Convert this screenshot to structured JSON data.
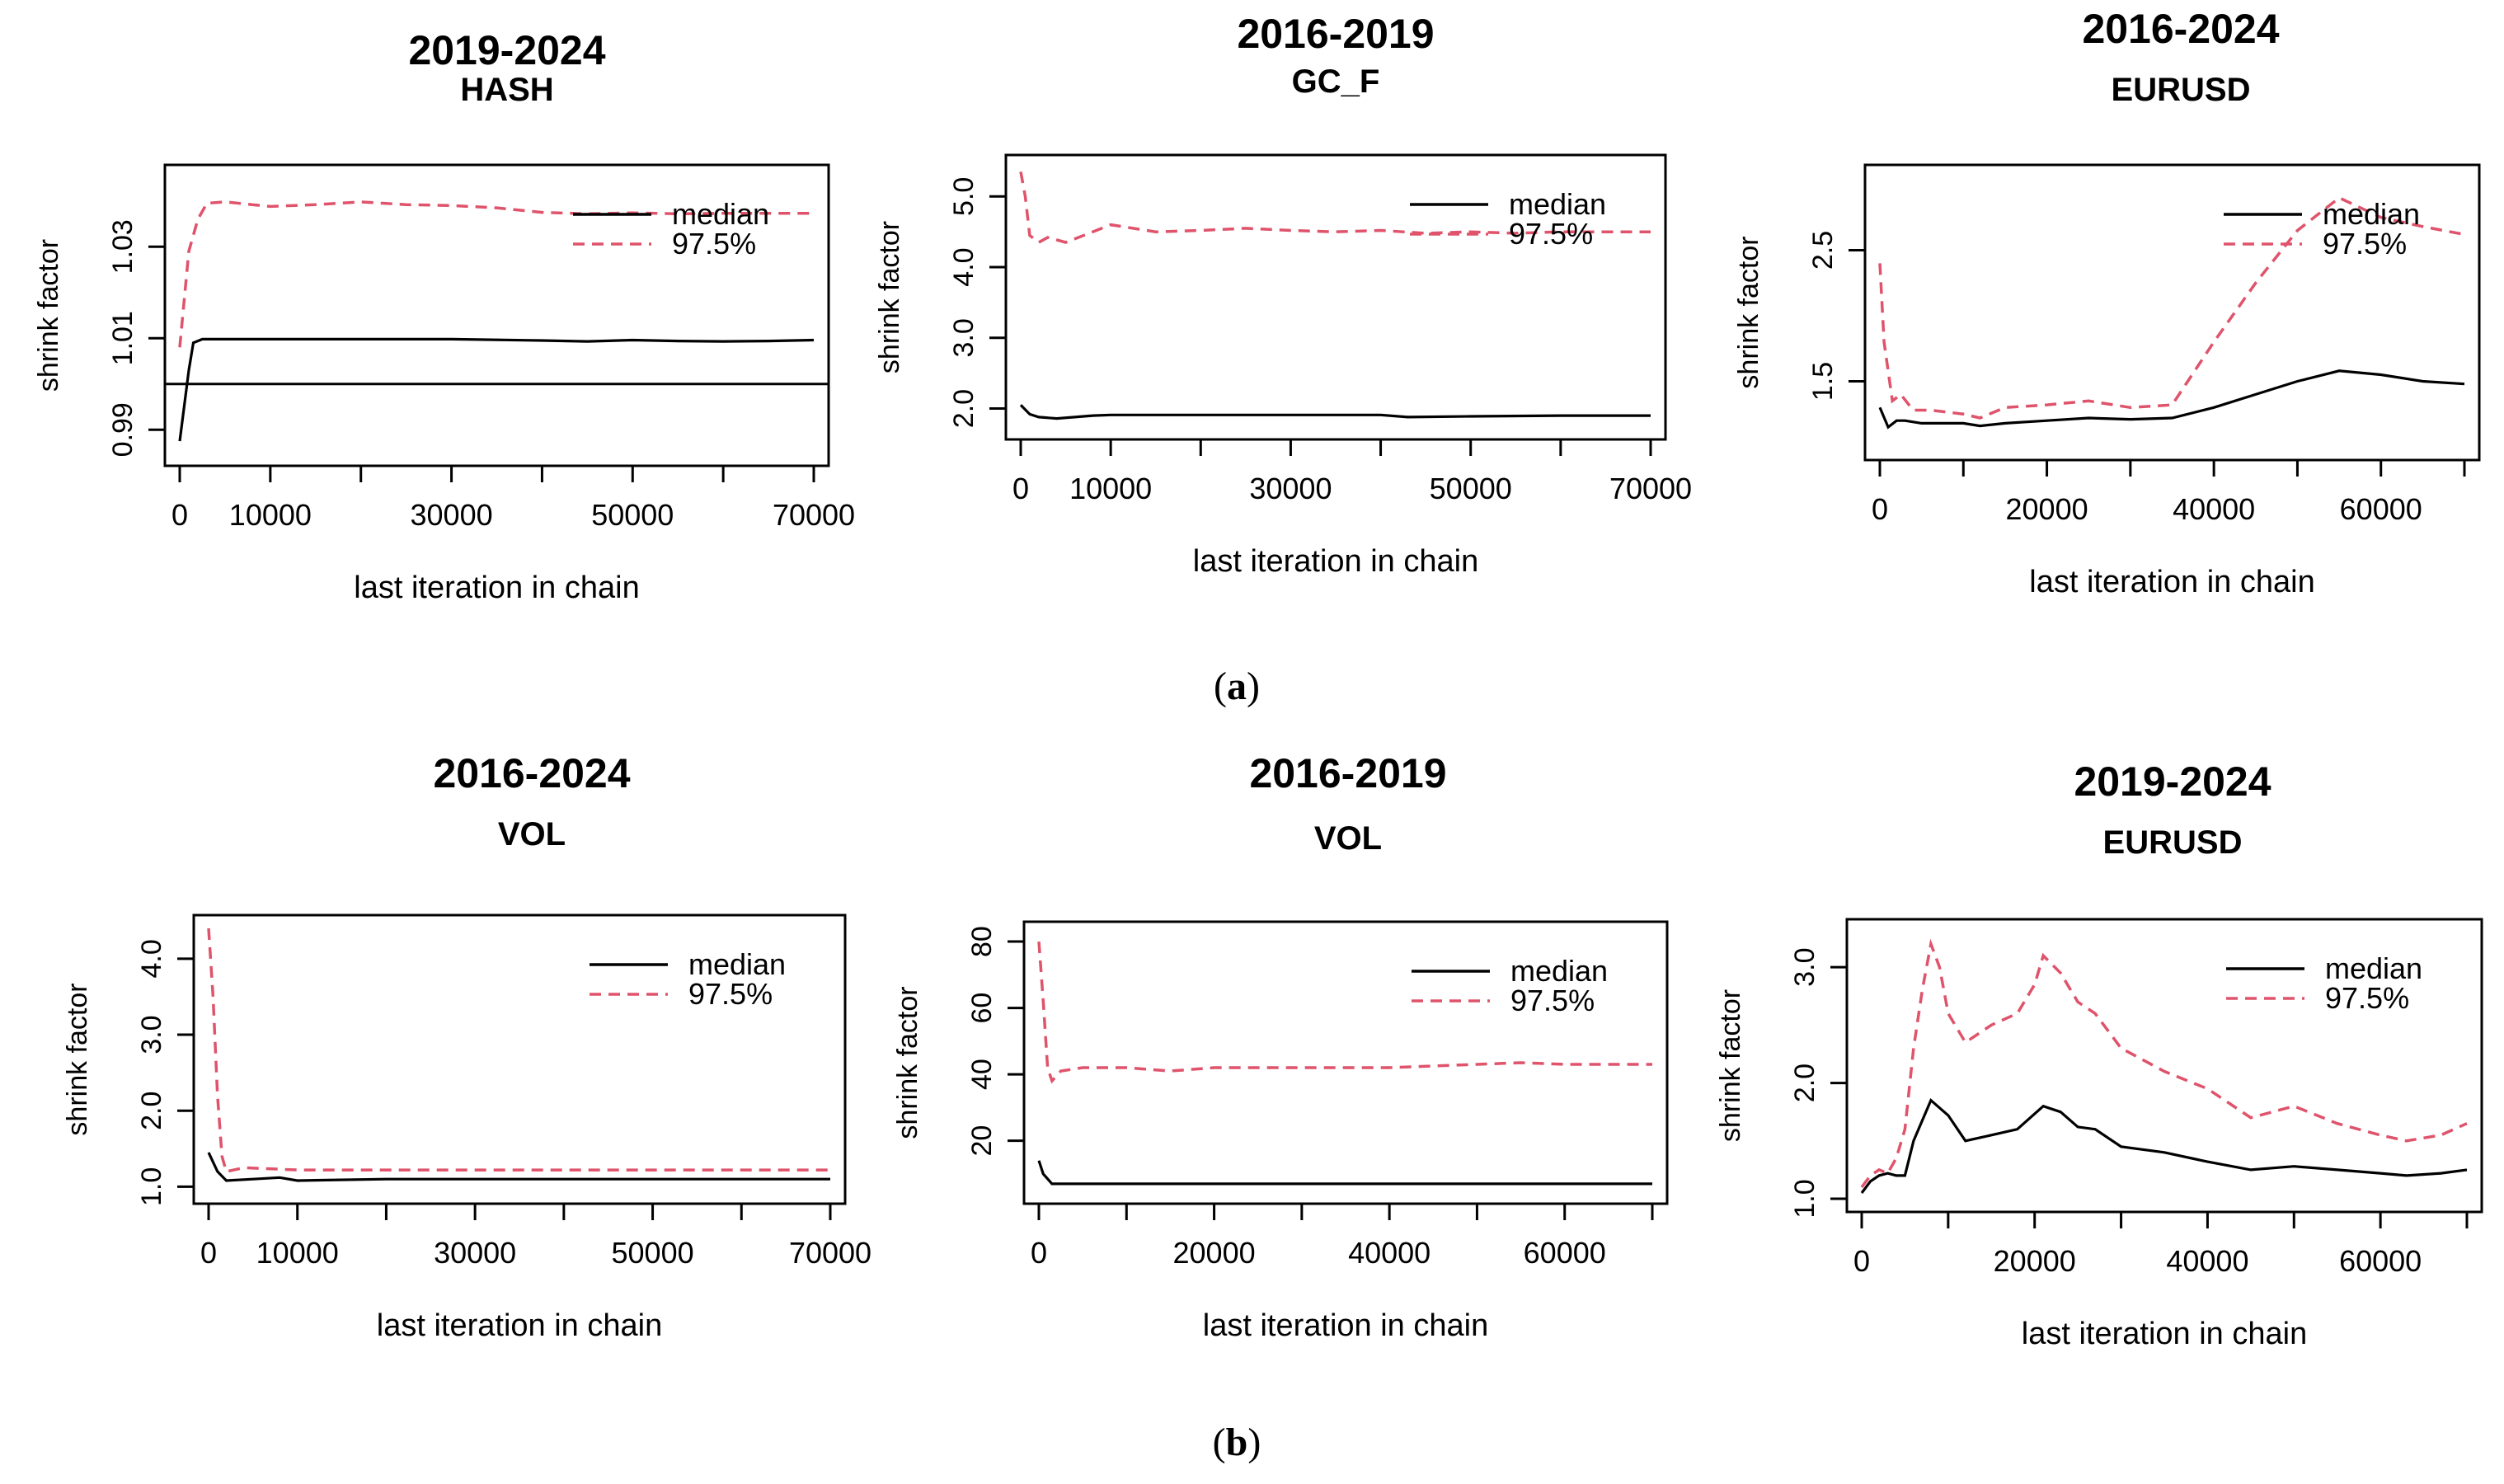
{
  "figure": {
    "panel_labels": {
      "a": "a",
      "b": "b"
    },
    "colors": {
      "median": "#000000",
      "q975": "#df536b",
      "axis": "#000000",
      "text": "#000000"
    }
  },
  "chart_data": [
    {
      "type": "line",
      "title": "2019-2024",
      "subtitle": "HASH",
      "xlabel": "last iteration in chain",
      "ylabel": "shrink factor",
      "xlim": [
        0,
        70000
      ],
      "ylim": [
        0.985,
        1.045
      ],
      "xticks": [
        0,
        10000,
        30000,
        50000,
        70000
      ],
      "xtick_labels": [
        "0",
        "10000",
        "30000",
        "50000",
        "70000"
      ],
      "yticks": [
        0.99,
        1.01,
        1.03
      ],
      "ytick_labels": [
        "0.99",
        "1.01",
        "1.03"
      ],
      "hline": 1.0,
      "legend": {
        "position": "top-right",
        "entries": [
          "median",
          "97.5%"
        ]
      },
      "series": [
        {
          "name": "median",
          "style": "solid",
          "color": "#000000",
          "x": [
            0,
            1000,
            1500,
            2500,
            5000,
            10000,
            20000,
            30000,
            40000,
            45000,
            50000,
            55000,
            60000,
            65000,
            70000
          ],
          "y": [
            0.9875,
            1.003,
            1.009,
            1.0098,
            1.0098,
            1.0098,
            1.0098,
            1.0098,
            1.0095,
            1.0093,
            1.0096,
            1.0094,
            1.0093,
            1.0094,
            1.0096
          ]
        },
        {
          "name": "97.5%",
          "style": "dashed",
          "color": "#df536b",
          "x": [
            0,
            1000,
            2000,
            3000,
            5000,
            8000,
            10000,
            15000,
            20000,
            25000,
            30000,
            35000,
            40000,
            45000,
            50000,
            55000,
            60000,
            65000,
            70000
          ],
          "y": [
            1.008,
            1.029,
            1.036,
            1.0395,
            1.0398,
            1.0392,
            1.0388,
            1.0392,
            1.0398,
            1.0392,
            1.039,
            1.0385,
            1.0375,
            1.0372,
            1.0374,
            1.0372,
            1.0373,
            1.0373,
            1.0373
          ]
        }
      ]
    },
    {
      "type": "line",
      "title": "2016-2019",
      "subtitle": "GC_F",
      "xlabel": "last iteration in chain",
      "ylabel": "shrink factor",
      "xlim": [
        0,
        70000
      ],
      "ylim": [
        1.75,
        5.4
      ],
      "xticks": [
        0,
        10000,
        30000,
        50000,
        70000
      ],
      "xtick_labels": [
        "0",
        "10000",
        "30000",
        "50000",
        "70000"
      ],
      "yticks": [
        2.0,
        3.0,
        4.0,
        5.0
      ],
      "ytick_labels": [
        "2.0",
        "3.0",
        "4.0",
        "5.0"
      ],
      "legend": {
        "position": "top-right",
        "entries": [
          "median",
          "97.5%"
        ]
      },
      "series": [
        {
          "name": "median",
          "style": "solid",
          "color": "#000000",
          "x": [
            0,
            1000,
            2000,
            4000,
            6000,
            8000,
            10000,
            20000,
            30000,
            40000,
            43000,
            50000,
            60000,
            70000
          ],
          "y": [
            2.05,
            1.92,
            1.88,
            1.86,
            1.88,
            1.9,
            1.91,
            1.91,
            1.91,
            1.91,
            1.88,
            1.89,
            1.9,
            1.9
          ]
        },
        {
          "name": "97.5%",
          "style": "dashed",
          "color": "#df536b",
          "x": [
            0,
            500,
            1000,
            2000,
            3000,
            5000,
            7000,
            10000,
            15000,
            20000,
            25000,
            30000,
            35000,
            40000,
            45000,
            50000,
            55000,
            60000,
            65000,
            70000
          ],
          "y": [
            5.35,
            5.0,
            4.45,
            4.35,
            4.42,
            4.35,
            4.45,
            4.6,
            4.5,
            4.52,
            4.55,
            4.52,
            4.5,
            4.52,
            4.48,
            4.5,
            4.48,
            4.5,
            4.5,
            4.5
          ]
        }
      ]
    },
    {
      "type": "line",
      "title": "2016-2024",
      "subtitle": "EURUSD",
      "xlabel": "last iteration in chain",
      "ylabel": "shrink factor",
      "xlim": [
        0,
        70000
      ],
      "ylim": [
        1.0,
        3.05
      ],
      "xticks": [
        0,
        20000,
        40000,
        60000
      ],
      "xtick_labels": [
        "0",
        "20000",
        "40000",
        "60000"
      ],
      "yticks": [
        1.5,
        2.5
      ],
      "ytick_labels": [
        "1.5",
        "2.5"
      ],
      "legend": {
        "position": "top-right",
        "entries": [
          "median",
          "97.5%"
        ]
      },
      "series": [
        {
          "name": "median",
          "style": "solid",
          "color": "#000000",
          "x": [
            0,
            1000,
            2000,
            3000,
            5000,
            10000,
            12000,
            15000,
            20000,
            25000,
            30000,
            35000,
            40000,
            45000,
            50000,
            55000,
            60000,
            65000,
            70000
          ],
          "y": [
            1.3,
            1.15,
            1.2,
            1.2,
            1.18,
            1.18,
            1.16,
            1.18,
            1.2,
            1.22,
            1.21,
            1.22,
            1.3,
            1.4,
            1.5,
            1.58,
            1.55,
            1.5,
            1.48
          ]
        },
        {
          "name": "97.5%",
          "style": "dashed",
          "color": "#df536b",
          "x": [
            0,
            500,
            1500,
            2500,
            4000,
            6000,
            10000,
            12000,
            15000,
            20000,
            25000,
            30000,
            35000,
            40000,
            45000,
            50000,
            55000,
            60000,
            65000,
            70000
          ],
          "y": [
            2.4,
            1.8,
            1.35,
            1.4,
            1.28,
            1.28,
            1.25,
            1.22,
            1.3,
            1.32,
            1.35,
            1.3,
            1.32,
            1.8,
            2.25,
            2.65,
            2.9,
            2.75,
            2.68,
            2.62
          ]
        }
      ]
    },
    {
      "type": "line",
      "title": "2016-2024",
      "subtitle": "VOL",
      "xlabel": "last iteration in chain",
      "ylabel": "shrink factor",
      "xlim": [
        0,
        70000
      ],
      "ylim": [
        0.95,
        4.4
      ],
      "xticks": [
        0,
        10000,
        30000,
        50000,
        70000
      ],
      "xtick_labels": [
        "0",
        "10000",
        "30000",
        "50000",
        "70000"
      ],
      "yticks": [
        1.0,
        2.0,
        3.0,
        4.0
      ],
      "ytick_labels": [
        "1.0",
        "2.0",
        "3.0",
        "4.0"
      ],
      "legend": {
        "position": "top-right",
        "entries": [
          "median",
          "97.5%"
        ]
      },
      "series": [
        {
          "name": "median",
          "style": "solid",
          "color": "#000000",
          "x": [
            0,
            1000,
            2000,
            5000,
            8000,
            10000,
            20000,
            30000,
            40000,
            50000,
            60000,
            70000
          ],
          "y": [
            1.45,
            1.2,
            1.08,
            1.1,
            1.12,
            1.08,
            1.1,
            1.1,
            1.1,
            1.1,
            1.1,
            1.1
          ]
        },
        {
          "name": "97.5%",
          "style": "dashed",
          "color": "#df536b",
          "x": [
            0,
            500,
            1000,
            1500,
            2000,
            4000,
            10000,
            20000,
            30000,
            40000,
            50000,
            60000,
            70000
          ],
          "y": [
            4.4,
            3.5,
            2.2,
            1.4,
            1.2,
            1.25,
            1.22,
            1.22,
            1.22,
            1.22,
            1.22,
            1.22,
            1.22
          ]
        }
      ]
    },
    {
      "type": "line",
      "title": "2016-2019",
      "subtitle": "VOL",
      "xlabel": "last iteration in chain",
      "ylabel": "shrink factor",
      "xlim": [
        0,
        70000
      ],
      "ylim": [
        5,
        82
      ],
      "xticks": [
        0,
        20000,
        40000,
        60000
      ],
      "xtick_labels": [
        "0",
        "20000",
        "40000",
        "60000"
      ],
      "yticks": [
        20,
        40,
        60,
        80
      ],
      "ytick_labels": [
        "20",
        "40",
        "60",
        "80"
      ],
      "legend": {
        "position": "top-right",
        "entries": [
          "median",
          "97.5%"
        ]
      },
      "series": [
        {
          "name": "median",
          "style": "solid",
          "color": "#000000",
          "x": [
            0,
            500,
            1500,
            3000,
            10000,
            20000,
            30000,
            40000,
            50000,
            60000,
            70000
          ],
          "y": [
            14,
            10,
            7,
            7,
            7,
            7,
            7,
            7,
            7,
            7,
            7
          ]
        },
        {
          "name": "97.5%",
          "style": "dashed",
          "color": "#df536b",
          "x": [
            0,
            500,
            1000,
            1500,
            2500,
            5000,
            10000,
            15000,
            20000,
            30000,
            40000,
            50000,
            55000,
            60000,
            70000
          ],
          "y": [
            80,
            62,
            42,
            38,
            41,
            42,
            42,
            41,
            42,
            42,
            42,
            43,
            43.5,
            43,
            43
          ]
        }
      ]
    },
    {
      "type": "line",
      "title": "2019-2024",
      "subtitle": "EURUSD",
      "xlabel": "last iteration in chain",
      "ylabel": "shrink factor",
      "xlim": [
        0,
        70000
      ],
      "ylim": [
        1.0,
        3.3
      ],
      "xticks": [
        0,
        20000,
        40000,
        60000
      ],
      "xtick_labels": [
        "0",
        "20000",
        "40000",
        "60000"
      ],
      "yticks": [
        1.0,
        2.0,
        3.0
      ],
      "ytick_labels": [
        "1.0",
        "2.0",
        "3.0"
      ],
      "legend": {
        "position": "top-right",
        "entries": [
          "median",
          "97.5%"
        ]
      },
      "series": [
        {
          "name": "median",
          "style": "solid",
          "color": "#000000",
          "x": [
            0,
            1000,
            2000,
            3000,
            4000,
            5000,
            6000,
            8000,
            10000,
            12000,
            15000,
            18000,
            21000,
            23000,
            25000,
            27000,
            30000,
            35000,
            40000,
            45000,
            50000,
            55000,
            60000,
            63000,
            67000,
            70000
          ],
          "y": [
            1.05,
            1.15,
            1.2,
            1.22,
            1.2,
            1.2,
            1.5,
            1.85,
            1.72,
            1.5,
            1.55,
            1.6,
            1.8,
            1.75,
            1.62,
            1.6,
            1.45,
            1.4,
            1.32,
            1.25,
            1.28,
            1.25,
            1.22,
            1.2,
            1.22,
            1.25
          ]
        },
        {
          "name": "97.5%",
          "style": "dashed",
          "color": "#df536b",
          "x": [
            0,
            1000,
            2000,
            3000,
            4000,
            5000,
            6000,
            7000,
            8000,
            9000,
            10000,
            12000,
            15000,
            18000,
            20000,
            21000,
            23000,
            25000,
            27000,
            30000,
            35000,
            40000,
            45000,
            50000,
            55000,
            60000,
            63000,
            67000,
            70000
          ],
          "y": [
            1.1,
            1.2,
            1.25,
            1.22,
            1.35,
            1.6,
            2.3,
            2.8,
            3.2,
            3.0,
            2.6,
            2.35,
            2.5,
            2.6,
            2.85,
            3.1,
            2.95,
            2.7,
            2.6,
            2.3,
            2.1,
            1.95,
            1.7,
            1.8,
            1.65,
            1.55,
            1.5,
            1.55,
            1.65
          ]
        }
      ]
    }
  ]
}
